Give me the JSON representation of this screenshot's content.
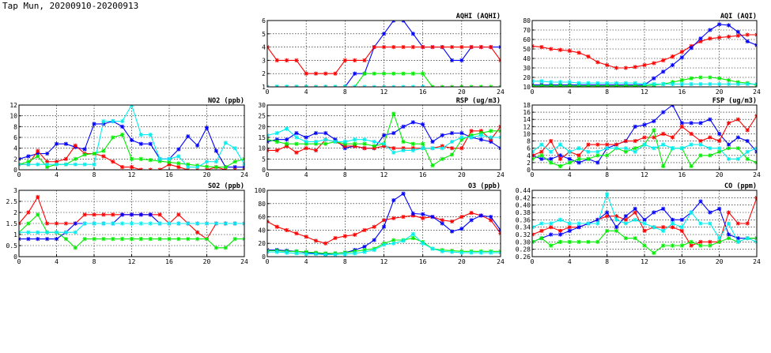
{
  "page": {
    "title": "Tap Mun, 20200910-20200913"
  },
  "colors": {
    "blue": "#0000ff",
    "red": "#ff0000",
    "green": "#00ee00",
    "cyan": "#00eeee"
  },
  "chart_data": [
    {
      "id": "aqhi",
      "type": "line",
      "title": "AQHI (AQHI)",
      "xlim": [
        0,
        24
      ],
      "ylim": [
        1,
        6
      ],
      "xticks": [
        0,
        4,
        8,
        12,
        16,
        20,
        24
      ],
      "yticks": [
        1,
        2,
        3,
        4,
        5,
        6
      ],
      "grid": true,
      "series": [
        {
          "color": "blue",
          "values": [
            1,
            1,
            1,
            1,
            1,
            1,
            1,
            1,
            1,
            2,
            2,
            4,
            5,
            6,
            6,
            5,
            4,
            4,
            4,
            3,
            3,
            4,
            4,
            4,
            4
          ]
        },
        {
          "color": "red",
          "values": [
            4,
            3,
            3,
            3,
            2,
            2,
            2,
            2,
            3,
            3,
            3,
            4,
            4,
            4,
            4,
            4,
            4,
            4,
            4,
            4,
            4,
            4,
            4,
            4,
            3
          ]
        },
        {
          "color": "green",
          "values": [
            1,
            1,
            1,
            1,
            1,
            1,
            1,
            1,
            1,
            1,
            2,
            2,
            2,
            2,
            2,
            2,
            2,
            1,
            1,
            1,
            1,
            1,
            1,
            1,
            1
          ]
        },
        {
          "color": "cyan",
          "values": [
            1,
            1,
            1,
            1,
            1,
            1,
            1,
            1,
            1,
            1,
            1,
            1,
            1,
            1,
            1,
            1,
            1,
            0.8,
            null,
            null,
            null,
            null,
            null,
            null,
            null
          ]
        }
      ]
    },
    {
      "id": "aqi",
      "type": "line",
      "title": "AQI (AQI)",
      "xlim": [
        0,
        24
      ],
      "ylim": [
        10,
        80
      ],
      "xticks": [
        0,
        4,
        8,
        12,
        16,
        20,
        24
      ],
      "yticks": [
        10,
        20,
        30,
        40,
        50,
        60,
        70,
        80
      ],
      "grid": true,
      "series": [
        {
          "color": "red",
          "values": [
            53,
            52,
            50,
            49,
            48,
            46,
            42,
            36,
            33,
            30,
            30,
            31,
            33,
            35,
            38,
            42,
            47,
            53,
            58,
            61,
            62,
            63,
            64,
            65,
            65
          ]
        },
        {
          "color": "blue",
          "values": [
            12,
            12,
            12,
            12,
            12,
            12,
            12,
            12,
            12,
            12,
            12,
            12,
            12,
            19,
            26,
            33,
            41,
            51,
            61,
            70,
            76,
            75,
            68,
            58,
            54
          ]
        },
        {
          "color": "green",
          "values": [
            11,
            11,
            11,
            11,
            11,
            11,
            11,
            11,
            11,
            11,
            11,
            11,
            11,
            12,
            13,
            15,
            17,
            19,
            20,
            20,
            19,
            17,
            15,
            14,
            12
          ]
        },
        {
          "color": "cyan",
          "values": [
            16,
            16,
            15,
            15,
            15,
            14,
            14,
            14,
            14,
            14,
            14,
            14,
            13,
            13,
            13,
            13,
            13,
            13,
            13,
            13,
            13,
            13,
            13,
            13,
            13
          ]
        }
      ]
    },
    {
      "id": "no2",
      "type": "line",
      "title": "NO2 (ppb)",
      "xlim": [
        0,
        24
      ],
      "ylim": [
        0,
        12
      ],
      "xticks": [
        0,
        4,
        8,
        12,
        16,
        20,
        24
      ],
      "yticks": [
        0,
        2,
        4,
        6,
        8,
        10,
        12
      ],
      "grid": true,
      "series": [
        {
          "color": "blue",
          "values": [
            2,
            2.5,
            3,
            3,
            4.8,
            4.8,
            4.2,
            3.8,
            8.5,
            8.5,
            9,
            8,
            5.5,
            4.8,
            4.8,
            2,
            2,
            3.8,
            6.2,
            4.5,
            7.8,
            3.5,
            0.5,
            0.5,
            0.5
          ]
        },
        {
          "color": "red",
          "values": [
            1,
            1,
            3.5,
            1.5,
            1.5,
            2,
            4.5,
            3,
            3,
            2.5,
            1.5,
            0.5,
            0.5,
            0,
            0,
            0,
            1,
            0.5,
            0,
            0,
            0,
            0.5,
            0,
            0,
            0
          ]
        },
        {
          "color": "green",
          "values": [
            1,
            1.5,
            2.5,
            0.5,
            1,
            1,
            2,
            2.8,
            3,
            3.5,
            6,
            6.5,
            2,
            2,
            1.8,
            1.6,
            1.4,
            1.2,
            1,
            0.8,
            0.6,
            0.5,
            0.5,
            1.5,
            2
          ]
        },
        {
          "color": "cyan",
          "values": [
            1,
            1,
            1,
            1,
            1,
            1,
            1,
            1,
            1,
            9,
            9,
            9,
            12,
            6.5,
            6.5,
            2,
            2,
            2.5,
            0.5,
            0.5,
            1.5,
            1.5,
            5,
            4,
            1
          ]
        }
      ]
    },
    {
      "id": "rsp",
      "type": "line",
      "title": "RSP (ug/m3)",
      "xlim": [
        0,
        24
      ],
      "ylim": [
        0,
        30
      ],
      "xticks": [
        0,
        4,
        8,
        12,
        16,
        20,
        24
      ],
      "yticks": [
        0,
        5,
        10,
        15,
        20,
        25,
        30
      ],
      "grid": true,
      "series": [
        {
          "color": "blue",
          "values": [
            13,
            14,
            14,
            17,
            15,
            17,
            17,
            14,
            10,
            11,
            10,
            10,
            16,
            17,
            20,
            22,
            21,
            13,
            16,
            17,
            17,
            15,
            14,
            13,
            10
          ]
        },
        {
          "color": "red",
          "values": [
            9,
            9,
            11,
            8,
            10,
            9,
            14,
            13,
            11,
            11,
            10,
            10,
            11,
            10,
            10,
            10,
            10,
            10,
            11,
            10,
            10,
            18,
            18,
            14,
            20
          ]
        },
        {
          "color": "green",
          "values": [
            14,
            13,
            12,
            12,
            12,
            12,
            12,
            13,
            12,
            12,
            12,
            11,
            12,
            26,
            13,
            12,
            12,
            2,
            5,
            7,
            14,
            16,
            17,
            18,
            18
          ]
        },
        {
          "color": "cyan",
          "values": [
            16,
            17,
            19,
            15,
            13,
            13,
            14,
            13,
            13,
            14,
            14,
            13,
            12,
            8,
            9,
            9,
            10,
            10,
            10,
            13,
            15,
            15,
            16,
            15,
            15
          ]
        }
      ]
    },
    {
      "id": "fsp",
      "type": "line",
      "title": "FSP (ug/m3)",
      "xlim": [
        0,
        24
      ],
      "ylim": [
        0,
        18
      ],
      "xticks": [
        0,
        4,
        8,
        12,
        16,
        20,
        24
      ],
      "yticks": [
        0,
        2,
        4,
        6,
        8,
        10,
        12,
        14,
        16,
        18
      ],
      "grid": true,
      "series": [
        {
          "color": "blue",
          "values": [
            4,
            3,
            3,
            4,
            3,
            2,
            3,
            2,
            6,
            7,
            8,
            12,
            12.5,
            13.5,
            16,
            18,
            13,
            13,
            13,
            14,
            10,
            7,
            9,
            8,
            5
          ]
        },
        {
          "color": "red",
          "values": [
            4,
            5,
            8,
            3,
            5,
            4,
            7,
            7,
            7,
            7,
            8,
            8,
            9,
            9,
            10,
            9,
            12,
            10,
            8,
            9,
            8,
            13,
            14,
            11,
            15
          ]
        },
        {
          "color": "green",
          "values": [
            3,
            4,
            2,
            1,
            2,
            3,
            3,
            4,
            4,
            6,
            5,
            6,
            7,
            11,
            1,
            6,
            6,
            1,
            4,
            4,
            5,
            6,
            6,
            3,
            2
          ]
        },
        {
          "color": "cyan",
          "values": [
            5,
            7,
            5,
            7,
            5,
            6,
            5,
            5,
            6,
            6,
            6,
            5,
            7,
            6,
            7,
            6,
            6,
            7,
            7,
            6,
            6,
            3,
            3,
            5,
            6
          ]
        }
      ]
    },
    {
      "id": "so2",
      "type": "line",
      "title": "SO2 (ppb)",
      "xlim": [
        0,
        24
      ],
      "ylim": [
        0,
        3
      ],
      "xticks": [
        0,
        4,
        8,
        12,
        16,
        20,
        24
      ],
      "yticks": [
        0,
        0.5,
        1,
        1.5,
        2,
        2.5,
        3
      ],
      "grid": true,
      "series": [
        {
          "color": "red",
          "values": [
            1.5,
            2,
            2.7,
            1.5,
            1.5,
            1.5,
            1.5,
            1.9,
            1.9,
            1.9,
            1.9,
            1.9,
            1.9,
            1.9,
            1.9,
            1.9,
            1.5,
            1.9,
            1.5,
            1.1,
            0.8,
            1.5,
            1.5,
            1.5,
            1.5
          ]
        },
        {
          "color": "blue",
          "values": [
            0.8,
            0.8,
            0.8,
            0.8,
            0.8,
            1.1,
            1.5,
            1.5,
            1.5,
            1.5,
            1.5,
            1.9,
            1.9,
            1.9,
            1.9,
            1.5,
            1.5,
            1.5,
            1.5,
            1.5,
            1.5,
            1.5,
            1.5,
            1.5,
            1.5
          ]
        },
        {
          "color": "green",
          "values": [
            1.1,
            1.5,
            1.9,
            1.1,
            1.1,
            0.8,
            0.4,
            0.8,
            0.8,
            0.8,
            0.8,
            0.8,
            0.8,
            0.8,
            0.8,
            0.8,
            0.8,
            0.8,
            0.8,
            0.8,
            0.8,
            0.4,
            0.4,
            0.8,
            0.8
          ]
        },
        {
          "color": "cyan",
          "values": [
            1.1,
            1.1,
            1.1,
            1.1,
            1.1,
            1.1,
            1.1,
            1.5,
            1.5,
            1.5,
            1.5,
            1.5,
            1.5,
            1.5,
            1.5,
            1.5,
            1.5,
            1.5,
            1.5,
            1.5,
            1.5,
            1.5,
            1.5,
            1.5,
            1.5
          ]
        }
      ]
    },
    {
      "id": "o3",
      "type": "line",
      "title": "O3 (ppb)",
      "xlim": [
        0,
        24
      ],
      "ylim": [
        0,
        100
      ],
      "xticks": [
        0,
        4,
        8,
        12,
        16,
        20,
        24
      ],
      "yticks": [
        0,
        20,
        40,
        60,
        80,
        100
      ],
      "grid": true,
      "series": [
        {
          "color": "red",
          "values": [
            53,
            45,
            40,
            35,
            30,
            24,
            20,
            28,
            31,
            33,
            40,
            45,
            55,
            58,
            60,
            62,
            58,
            60,
            55,
            53,
            60,
            66,
            62,
            55,
            35
          ]
        },
        {
          "color": "blue",
          "values": [
            10,
            10,
            9,
            8,
            6,
            5,
            4,
            5,
            6,
            10,
            15,
            25,
            45,
            85,
            95,
            65,
            64,
            60,
            50,
            38,
            42,
            55,
            62,
            60,
            40
          ]
        },
        {
          "color": "green",
          "values": [
            9,
            9,
            8,
            8,
            7,
            6,
            5,
            5,
            6,
            8,
            10,
            12,
            20,
            25,
            25,
            28,
            22,
            12,
            10,
            9,
            8,
            8,
            8,
            8,
            8
          ]
        },
        {
          "color": "cyan",
          "values": [
            7,
            7,
            6,
            5,
            4,
            4,
            3,
            3,
            4,
            5,
            7,
            10,
            18,
            20,
            24,
            34,
            20,
            12,
            8,
            7,
            6,
            6,
            6,
            6,
            6
          ]
        }
      ]
    },
    {
      "id": "co",
      "type": "line",
      "title": "CO (ppm)",
      "xlim": [
        0,
        24
      ],
      "ylim": [
        0.26,
        0.44
      ],
      "xticks": [
        0,
        4,
        8,
        12,
        16,
        20,
        24
      ],
      "yticks": [
        0.26,
        0.28,
        0.3,
        0.32,
        0.34,
        0.36,
        0.38,
        0.4,
        0.42,
        0.44
      ],
      "ytick_labels": [
        "0.26",
        "0.28",
        "0.30",
        "0.32",
        "0.34",
        "0.36",
        "0.38",
        "0.40",
        "0.42",
        "0.44"
      ],
      "grid": true,
      "series": [
        {
          "color": "red",
          "values": [
            0.32,
            0.33,
            0.34,
            0.33,
            0.34,
            0.34,
            0.35,
            0.36,
            0.37,
            0.37,
            0.36,
            0.38,
            0.33,
            0.34,
            0.34,
            0.34,
            0.33,
            0.29,
            0.3,
            0.3,
            0.3,
            0.38,
            0.35,
            0.35,
            0.42
          ]
        },
        {
          "color": "blue",
          "values": [
            0.3,
            0.31,
            0.32,
            0.32,
            0.33,
            0.34,
            0.35,
            0.36,
            0.38,
            0.34,
            0.37,
            0.39,
            0.36,
            0.38,
            0.39,
            0.36,
            0.36,
            0.38,
            0.41,
            0.38,
            0.39,
            0.32,
            0.31,
            0.31,
            0.31
          ]
        },
        {
          "color": "green",
          "values": [
            0.3,
            0.31,
            0.29,
            0.3,
            0.3,
            0.3,
            0.3,
            0.3,
            0.33,
            0.33,
            0.31,
            0.31,
            0.29,
            0.27,
            0.29,
            0.29,
            0.29,
            0.3,
            0.29,
            0.29,
            0.3,
            0.31,
            0.3,
            0.31,
            0.31
          ]
        },
        {
          "color": "cyan",
          "values": [
            0.34,
            0.35,
            0.35,
            0.36,
            0.35,
            0.35,
            0.35,
            0.35,
            0.43,
            0.36,
            0.35,
            0.36,
            0.35,
            0.34,
            0.33,
            0.35,
            0.34,
            0.38,
            0.35,
            0.35,
            0.31,
            0.35,
            0.3,
            0.31,
            0.3
          ]
        }
      ]
    }
  ]
}
